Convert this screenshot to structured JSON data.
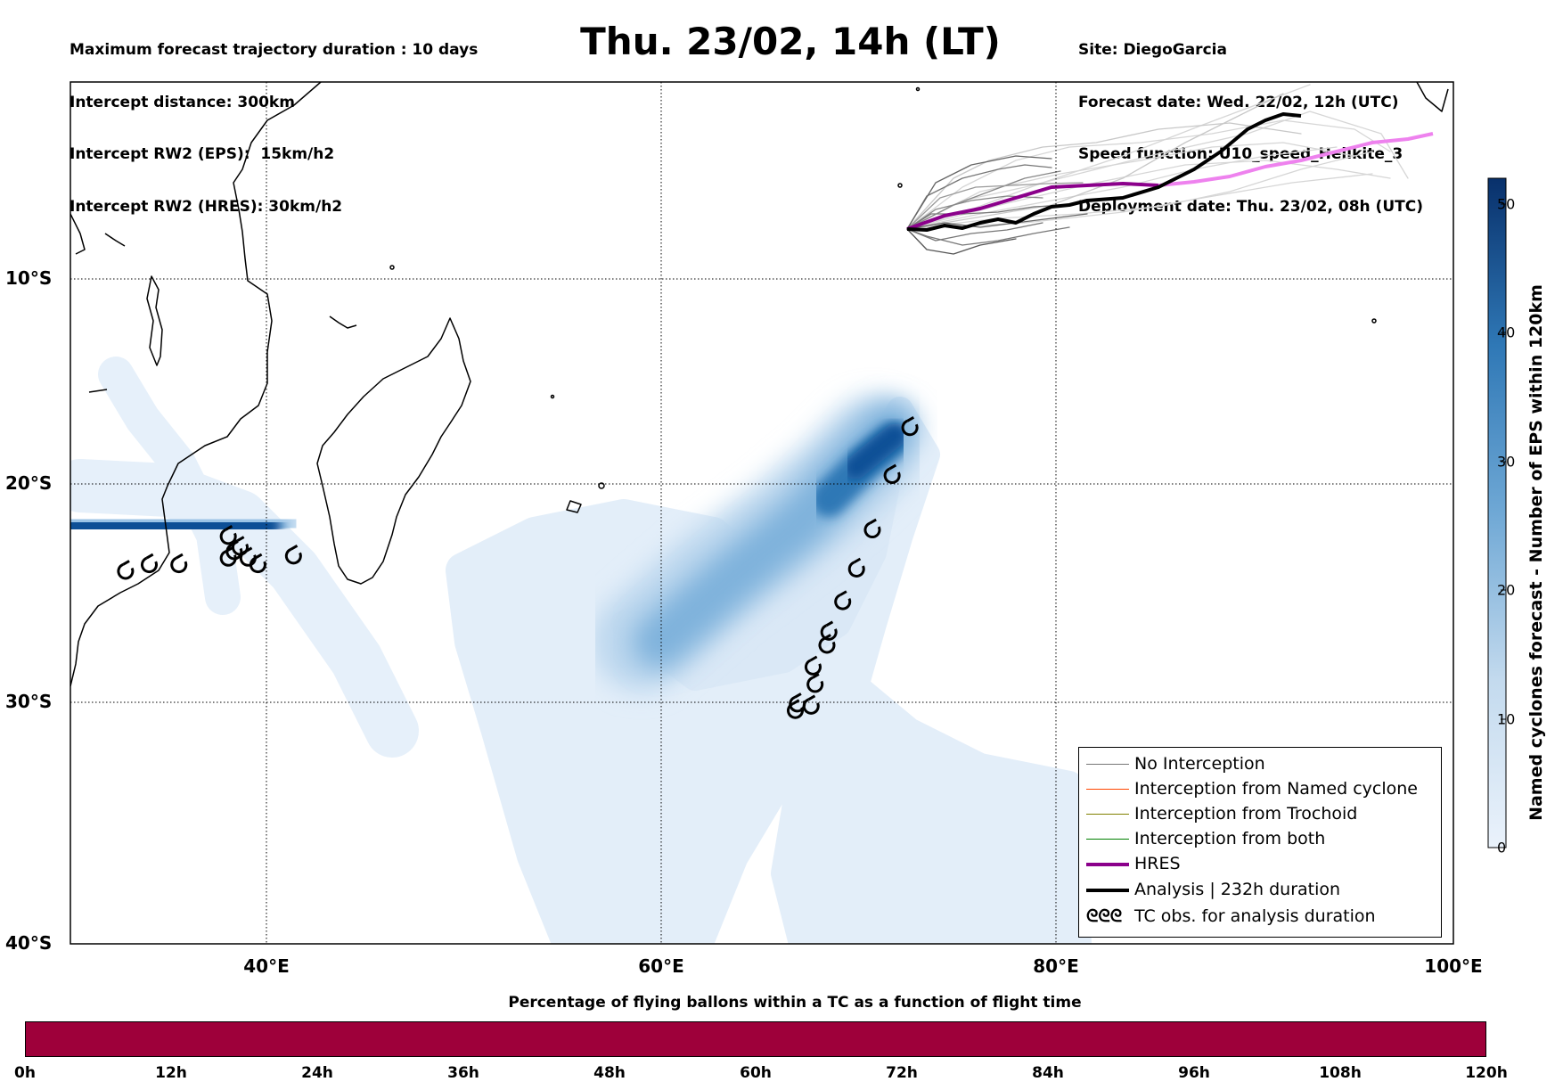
{
  "header": {
    "info_left": [
      "Maximum forecast trajectory duration : 10 days",
      "Intercept distance: 300km",
      "Intercept RW2 (EPS):  15km/h2",
      "Intercept RW2 (HRES): 30km/h2"
    ],
    "title": "Thu. 23/02, 14h (LT)",
    "info_right": [
      "Site: DiegoGarcia",
      "Forecast date: Wed. 22/02, 12h (UTC)",
      "Speed function: U10_speed_Helikite_3",
      "Deployment date: Thu. 23/02, 08h (UTC)"
    ]
  },
  "map": {
    "lat_labels": [
      "10°S",
      "20°S",
      "30°S",
      "40°S"
    ],
    "lon_labels": [
      "40°E",
      "60°E",
      "80°E",
      "100°E"
    ],
    "extent": {
      "lon_min": 30,
      "lon_max": 100,
      "lat_min": -40,
      "lat_max": -0.4
    },
    "density_color_scale": [
      "#e3eef9",
      "#08306b"
    ],
    "colors": {
      "no_interception": "#777777",
      "hres": "#8b008b",
      "hres_late": "#ee82ee",
      "analysis": "#000000"
    }
  },
  "legend": {
    "items": [
      {
        "label": "No Interception",
        "color": "#777777"
      },
      {
        "label": "Interception from Named cyclone",
        "color": "#ff4500"
      },
      {
        "label": "Interception from Trochoid",
        "color": "#808000"
      },
      {
        "label": "Interception from both",
        "color": "#008000"
      },
      {
        "label": "HRES",
        "color": "#8b008b"
      },
      {
        "label": "Analysis | 232h duration",
        "color": "#000000"
      },
      {
        "label": "TC obs. for analysis duration",
        "icon": "cyclone-symbol-icon"
      }
    ],
    "tc_symbols": "ᘓᘓᘓ"
  },
  "colorbar": {
    "title": "Named cyclones forecast - Number of EPS within 120km",
    "ticks": [
      "0",
      "10",
      "20",
      "30",
      "40",
      "50"
    ],
    "max": 52
  },
  "flight_bar": {
    "title": "Percentage of flying ballons within a TC as a function of flight time",
    "color": "#9e003a",
    "ticks": [
      "0h",
      "12h",
      "24h",
      "36h",
      "48h",
      "60h",
      "72h",
      "84h",
      "96h",
      "108h",
      "120h"
    ]
  },
  "chart_data": {
    "type": "map",
    "title": "Thu. 23/02, 14h (LT)",
    "tc_observations": [
      {
        "lon": 72.5,
        "lat": -16.3
      },
      {
        "lon": 71.6,
        "lat": -18.5
      },
      {
        "lon": 70.6,
        "lat": -21.0
      },
      {
        "lon": 69.8,
        "lat": -22.8
      },
      {
        "lon": 69.1,
        "lat": -24.3
      },
      {
        "lon": 68.4,
        "lat": -25.7
      },
      {
        "lon": 68.3,
        "lat": -26.3
      },
      {
        "lon": 67.6,
        "lat": -27.3
      },
      {
        "lon": 67.7,
        "lat": -28.1
      },
      {
        "lon": 66.8,
        "lat": -29.0
      },
      {
        "lon": 67.5,
        "lat": -29.1
      },
      {
        "lon": 66.7,
        "lat": -29.3
      },
      {
        "lon": 41.3,
        "lat": -22.2
      },
      {
        "lon": 38.0,
        "lat": -21.3
      },
      {
        "lon": 38.6,
        "lat": -21.8
      },
      {
        "lon": 38.3,
        "lat": -22.0
      },
      {
        "lon": 38.0,
        "lat": -22.3
      },
      {
        "lon": 39.0,
        "lat": -22.3
      },
      {
        "lon": 39.5,
        "lat": -22.6
      },
      {
        "lon": 35.5,
        "lat": -22.6
      },
      {
        "lon": 34.0,
        "lat": -22.6
      },
      {
        "lon": 32.8,
        "lat": -22.9
      }
    ],
    "analysis_track": [
      [
        72.5,
        -7.4
      ],
      [
        73.5,
        -7.5
      ],
      [
        75,
        -7.3
      ],
      [
        76.5,
        -7.2
      ],
      [
        77.5,
        -7.2
      ],
      [
        78.5,
        -6.5
      ],
      [
        80,
        -6.4
      ],
      [
        82,
        -6.0
      ],
      [
        84,
        -5.3
      ],
      [
        86,
        -3.8
      ],
      [
        87.5,
        -2.6
      ],
      [
        88.5,
        -2.4
      ],
      [
        89.3,
        -2.4
      ]
    ],
    "hres_track": [
      [
        72.5,
        -7.5
      ],
      [
        74,
        -6.9
      ],
      [
        76,
        -6.4
      ],
      [
        78,
        -5.8
      ],
      [
        80,
        -5.6
      ],
      [
        82,
        -5.5
      ],
      [
        84,
        -5.4
      ],
      [
        86,
        -5.1
      ],
      [
        88,
        -4.8
      ],
      [
        90,
        -4.3
      ],
      [
        92,
        -3.8
      ],
      [
        94,
        -3.5
      ]
    ],
    "density_cores": [
      {
        "lon": 33,
        "lat": -21.9,
        "peak": 48
      },
      {
        "lon": 71.5,
        "lat": -18.2,
        "peak": 50
      },
      {
        "lon": 65,
        "lat": -24.5,
        "peak": 30
      }
    ]
  }
}
